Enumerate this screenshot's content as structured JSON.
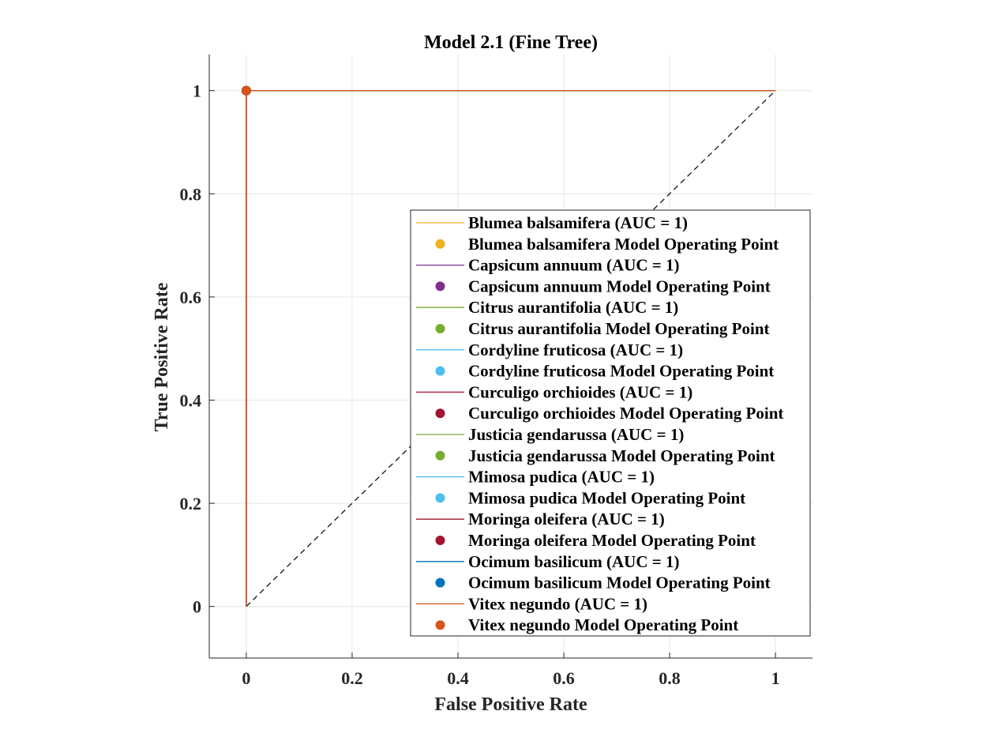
{
  "chart_data": {
    "type": "line",
    "title": "Model 2.1 (Fine Tree)",
    "xlabel": "False Positive Rate",
    "ylabel": "True Positive Rate",
    "xlim": [
      -0.07,
      1.07
    ],
    "ylim": [
      -0.1,
      1.07
    ],
    "xticks": [
      0,
      0.2,
      0.4,
      0.6,
      0.8,
      1
    ],
    "yticks": [
      0,
      0.2,
      0.4,
      0.6,
      0.8,
      1
    ],
    "xtick_labels": [
      "0",
      "0.2",
      "0.4",
      "0.6",
      "0.8",
      "1"
    ],
    "ytick_labels": [
      "0",
      "0.2",
      "0.4",
      "0.6",
      "0.8",
      "1"
    ],
    "grid": true,
    "legend_position": "bottom-right",
    "reference_line": {
      "x": [
        0,
        1
      ],
      "y": [
        0,
        1
      ],
      "style": "dashed",
      "color": "#000000"
    },
    "series": [
      {
        "name": "Blumea balsamifera (AUC = 1)",
        "point_name": "Blumea balsamifera Model Operating Point",
        "color": "#EDB120",
        "x": [
          0,
          0,
          1
        ],
        "y": [
          0,
          1,
          1
        ],
        "operating_point": [
          0,
          1
        ]
      },
      {
        "name": "Capsicum annuum (AUC = 1)",
        "point_name": "Capsicum annuum Model Operating Point",
        "color": "#7E2F8E",
        "x": [
          0,
          0,
          1
        ],
        "y": [
          0,
          1,
          1
        ],
        "operating_point": [
          0,
          1
        ]
      },
      {
        "name": "Citrus aurantifolia (AUC = 1)",
        "point_name": "Citrus aurantifolia Model Operating Point",
        "color": "#77AC30",
        "x": [
          0,
          0,
          1
        ],
        "y": [
          0,
          1,
          1
        ],
        "operating_point": [
          0,
          1
        ]
      },
      {
        "name": "Cordyline fruticosa (AUC = 1)",
        "point_name": "Cordyline fruticosa Model Operating Point",
        "color": "#4DBEEE",
        "x": [
          0,
          0,
          1
        ],
        "y": [
          0,
          1,
          1
        ],
        "operating_point": [
          0,
          1
        ]
      },
      {
        "name": "Curculigo orchioides (AUC = 1)",
        "point_name": "Curculigo orchioides Model Operating Point",
        "color": "#A2142F",
        "x": [
          0,
          0,
          1
        ],
        "y": [
          0,
          1,
          1
        ],
        "operating_point": [
          0,
          1
        ]
      },
      {
        "name": "Justicia gendarussa (AUC = 1)",
        "point_name": "Justicia gendarussa Model Operating Point",
        "color": "#77AC30",
        "x": [
          0,
          0,
          1
        ],
        "y": [
          0,
          1,
          1
        ],
        "operating_point": [
          0,
          1
        ]
      },
      {
        "name": "Mimosa pudica (AUC = 1)",
        "point_name": "Mimosa pudica Model Operating Point",
        "color": "#4DBEEE",
        "x": [
          0,
          0,
          1
        ],
        "y": [
          0,
          1,
          1
        ],
        "operating_point": [
          0,
          1
        ]
      },
      {
        "name": "Moringa oleifera (AUC = 1)",
        "point_name": "Moringa oleifera Model Operating Point",
        "color": "#A2142F",
        "x": [
          0,
          0,
          1
        ],
        "y": [
          0,
          1,
          1
        ],
        "operating_point": [
          0,
          1
        ]
      },
      {
        "name": "Ocimum basilicum (AUC = 1)",
        "point_name": "Ocimum basilicum Model Operating Point",
        "color": "#0072BD",
        "x": [
          0,
          0,
          1
        ],
        "y": [
          0,
          1,
          1
        ],
        "operating_point": [
          0,
          1
        ]
      },
      {
        "name": "Vitex negundo (AUC = 1)",
        "point_name": "Vitex negundo Model Operating Point",
        "color": "#D95319",
        "x": [
          0,
          0,
          1
        ],
        "y": [
          0,
          1,
          1
        ],
        "operating_point": [
          0,
          1
        ]
      }
    ]
  }
}
